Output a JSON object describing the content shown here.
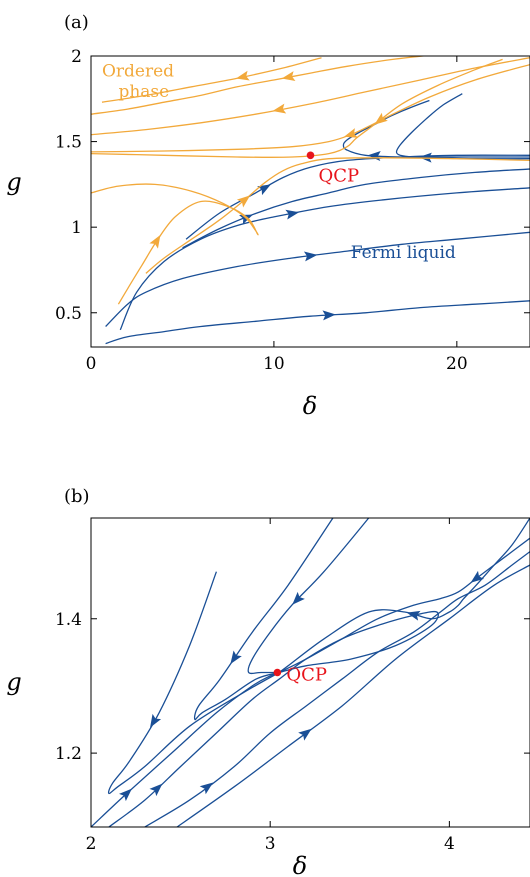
{
  "colors": {
    "flow_blue": "#1a4f96",
    "flow_orange": "#f2a93b",
    "qcp_red": "#e8141b"
  },
  "chart_data": [
    {
      "panel": "(a)",
      "type": "line",
      "subtype": "renormalization-group flow diagram",
      "xlabel": "δ",
      "ylabel": "g",
      "xlim": [
        0,
        24
      ],
      "ylim": [
        0.3,
        2.0
      ],
      "x_ticks": [
        {
          "v": 0,
          "label": "0"
        },
        {
          "v": 10,
          "label": "10"
        },
        {
          "v": 20,
          "label": "20"
        }
      ],
      "y_ticks": [
        {
          "v": 0.5,
          "label": "0.5"
        },
        {
          "v": 1,
          "label": "1"
        },
        {
          "v": 1.5,
          "label": "1.5"
        },
        {
          "v": 2,
          "label": "2"
        }
      ],
      "grid": false,
      "fixed_point": {
        "x": 12.0,
        "y": 1.42,
        "label": "QCP"
      },
      "region_labels": [
        {
          "text": "Ordered",
          "x": 0.6,
          "y": 1.88,
          "color": "orange"
        },
        {
          "text": "phase",
          "x": 1.5,
          "y": 1.76,
          "color": "orange"
        },
        {
          "text": "Fermi liquid",
          "x": 14.2,
          "y": 0.82,
          "color": "blue"
        }
      ],
      "series": [
        {
          "color": "blue",
          "x": [
            0.8,
            2,
            4,
            6,
            9,
            12,
            15,
            18,
            21,
            24
          ],
          "y": [
            0.32,
            0.36,
            0.39,
            0.42,
            0.45,
            0.48,
            0.5,
            0.53,
            0.55,
            0.57
          ],
          "arrows": [
            {
              "at": 13,
              "dir": 1
            }
          ]
        },
        {
          "color": "blue",
          "x": [
            0.8,
            2,
            3,
            5,
            8,
            11,
            14,
            17,
            20,
            24
          ],
          "y": [
            0.42,
            0.55,
            0.62,
            0.7,
            0.77,
            0.82,
            0.86,
            0.9,
            0.93,
            0.97
          ],
          "arrows": [
            {
              "at": 12,
              "dir": 1
            }
          ]
        },
        {
          "color": "blue",
          "x": [
            1.6,
            2.5,
            4,
            6,
            8,
            10,
            13,
            16,
            20,
            24
          ],
          "y": [
            0.4,
            0.62,
            0.8,
            0.93,
            1.01,
            1.06,
            1.12,
            1.16,
            1.2,
            1.23
          ],
          "arrows": [
            {
              "at": 11,
              "dir": 1
            }
          ]
        },
        {
          "color": "blue",
          "x": [
            5,
            7,
            9,
            11,
            13,
            15,
            18,
            21,
            24
          ],
          "y": [
            0.88,
            0.99,
            1.08,
            1.15,
            1.2,
            1.25,
            1.29,
            1.32,
            1.34
          ],
          "arrows": [
            {
              "at": 8.5,
              "dir": 1
            }
          ]
        },
        {
          "color": "blue",
          "x": [
            5.2,
            7,
            9,
            10.5,
            12,
            14,
            17,
            20,
            24
          ],
          "y": [
            0.93,
            1.08,
            1.2,
            1.29,
            1.35,
            1.39,
            1.41,
            1.42,
            1.42
          ],
          "arrows": [
            {
              "at": 9.5,
              "dir": 1
            }
          ]
        },
        {
          "color": "blue",
          "x": [
            24,
            20,
            17,
            15,
            14,
            13.8,
            14,
            14.6,
            15.5,
            16.4,
            17.5,
            18.5
          ],
          "y": [
            1.41,
            1.41,
            1.41,
            1.42,
            1.45,
            1.48,
            1.51,
            1.55,
            1.6,
            1.65,
            1.7,
            1.74
          ],
          "arrows": [
            {
              "at": 15.5,
              "dir": -1
            }
          ]
        },
        {
          "color": "blue",
          "x": [
            24,
            21,
            19,
            17.6,
            16.9,
            16.7,
            16.9,
            17.5,
            18.3,
            19.2,
            20.3
          ],
          "y": [
            1.4,
            1.4,
            1.405,
            1.41,
            1.42,
            1.44,
            1.48,
            1.55,
            1.63,
            1.71,
            1.78
          ],
          "arrows": [
            {
              "at": 18.3,
              "dir": -1
            }
          ]
        },
        {
          "color": "orange",
          "x": [
            1.5,
            2,
            2.8,
            3.6,
            4.6,
            6,
            7.5,
            8.6,
            9.1,
            9.0,
            8.4,
            7.2,
            5.5,
            3.5,
            1.5,
            0
          ],
          "y": [
            0.55,
            0.64,
            0.78,
            0.92,
            1.06,
            1.15,
            1.12,
            1.05,
            0.96,
            0.98,
            1.06,
            1.14,
            1.21,
            1.25,
            1.24,
            1.2
          ],
          "arrows": [
            {
              "at": 3.6,
              "dir": 1
            }
          ]
        },
        {
          "color": "orange",
          "x": [
            3,
            4,
            5.5,
            7,
            8.4,
            9.5,
            10.5,
            11.5,
            13,
            16,
            20,
            24
          ],
          "y": [
            0.73,
            0.82,
            0.93,
            1.04,
            1.16,
            1.26,
            1.33,
            1.37,
            1.4,
            1.405,
            1.4,
            1.39
          ],
          "arrows": [
            {
              "at": 8.4,
              "dir": 1
            }
          ]
        },
        {
          "color": "orange",
          "x": [
            0,
            4,
            8,
            11,
            13,
            14,
            14.5,
            15.5,
            17,
            19,
            21,
            22.5
          ],
          "y": [
            1.43,
            1.42,
            1.41,
            1.41,
            1.43,
            1.47,
            1.52,
            1.6,
            1.72,
            1.83,
            1.92,
            1.98
          ],
          "arrows": [
            {
              "at": 15.8,
              "dir": -1
            }
          ]
        },
        {
          "color": "orange",
          "x": [
            0,
            4,
            8,
            11,
            13,
            14.2,
            15.2,
            16.5,
            18.5,
            21,
            24
          ],
          "y": [
            1.44,
            1.445,
            1.455,
            1.47,
            1.5,
            1.54,
            1.59,
            1.66,
            1.76,
            1.86,
            1.95
          ],
          "arrows": [
            {
              "at": 14.2,
              "dir": -1
            }
          ]
        },
        {
          "color": "orange",
          "x": [
            0,
            3,
            6,
            9,
            12,
            15,
            18,
            21,
            24
          ],
          "y": [
            1.54,
            1.57,
            1.61,
            1.66,
            1.72,
            1.79,
            1.86,
            1.93,
            1.99
          ],
          "arrows": [
            {
              "at": 10.3,
              "dir": -1
            }
          ]
        },
        {
          "color": "orange",
          "x": [
            0,
            2,
            4,
            6,
            8,
            10,
            12,
            14,
            16.5,
            19
          ],
          "y": [
            1.66,
            1.69,
            1.73,
            1.77,
            1.82,
            1.86,
            1.9,
            1.94,
            1.98,
            2.01
          ],
          "arrows": [
            {
              "at": 10.8,
              "dir": -1
            }
          ]
        },
        {
          "color": "orange",
          "x": [
            0.6,
            3,
            5.5,
            8,
            10.5,
            12.6
          ],
          "y": [
            1.73,
            1.77,
            1.82,
            1.87,
            1.93,
            1.99
          ],
          "arrows": [
            {
              "at": 8.3,
              "dir": -1
            }
          ]
        }
      ]
    },
    {
      "panel": "(b)",
      "type": "line",
      "subtype": "renormalization-group flow diagram (zoom near QCP)",
      "xlabel": "δ",
      "ylabel": "g",
      "xlim": [
        2,
        4.45
      ],
      "ylim": [
        1.09,
        1.55
      ],
      "x_ticks": [
        {
          "v": 2,
          "label": "2"
        },
        {
          "v": 3,
          "label": "3"
        },
        {
          "v": 4,
          "label": "4"
        }
      ],
      "y_ticks": [
        {
          "v": 1.2,
          "label": "1.2"
        },
        {
          "v": 1.4,
          "label": "1.4"
        }
      ],
      "grid": false,
      "fixed_point": {
        "x": 3.04,
        "y": 1.32,
        "label": "QCP"
      },
      "series": [
        {
          "color": "blue",
          "x": [
            2.7,
            2.55,
            2.38,
            2.22,
            2.12,
            2.1,
            2.15,
            2.3,
            2.55,
            2.85,
            3.05
          ],
          "y": [
            1.47,
            1.36,
            1.26,
            1.19,
            1.155,
            1.14,
            1.15,
            1.18,
            1.24,
            1.29,
            1.32
          ],
          "arrows": [
            {
              "at": 2.35,
              "dir": -1
            }
          ]
        },
        {
          "color": "blue",
          "x": [
            3.35,
            3.1,
            2.9,
            2.72,
            2.6,
            2.58,
            2.62,
            2.75,
            2.92,
            3.05
          ],
          "y": [
            1.55,
            1.45,
            1.38,
            1.31,
            1.27,
            1.25,
            1.26,
            1.28,
            1.31,
            1.32
          ],
          "arrows": [
            {
              "at": 2.8,
              "dir": -1
            }
          ]
        },
        {
          "color": "blue",
          "x": [
            3.55,
            3.3,
            3.12,
            3.0,
            2.9,
            2.88,
            2.95,
            3.05
          ],
          "y": [
            1.55,
            1.47,
            1.42,
            1.38,
            1.34,
            1.32,
            1.32,
            1.32
          ],
          "arrows": [
            {
              "at": 3.15,
              "dir": -1
            }
          ]
        },
        {
          "color": "blue",
          "x": [
            4.45,
            4.3,
            4.15,
            4.05,
            3.95,
            3.8,
            3.6,
            3.4,
            3.2,
            3.05
          ],
          "y": [
            1.52,
            1.49,
            1.46,
            1.44,
            1.43,
            1.42,
            1.4,
            1.37,
            1.34,
            1.32
          ],
          "arrows": [
            {
              "at": 4.15,
              "dir": -1
            }
          ]
        },
        {
          "color": "blue",
          "x": [
            4.45,
            4.35,
            4.25,
            4.15,
            4.08,
            4.05,
            4.0,
            3.9,
            3.75,
            3.55,
            3.3,
            3.1,
            3.05
          ],
          "y": [
            1.55,
            1.51,
            1.48,
            1.45,
            1.43,
            1.42,
            1.41,
            1.4,
            1.41,
            1.41,
            1.37,
            1.33,
            1.32
          ],
          "arrows": [
            {
              "at": 3.8,
              "dir": -1
            }
          ]
        },
        {
          "color": "blue",
          "x": [
            2.0,
            2.2,
            2.45,
            2.7,
            2.9,
            3.0,
            3.05
          ],
          "y": [
            1.09,
            1.14,
            1.2,
            1.26,
            1.3,
            1.315,
            1.32
          ],
          "arrows": [
            {
              "at": 2.2,
              "dir": 1
            }
          ]
        },
        {
          "color": "blue",
          "x": [
            2.1,
            2.3,
            2.5,
            2.7,
            2.9,
            3.05,
            3.2,
            3.4,
            3.6,
            3.8,
            3.93,
            3.9,
            3.7,
            3.45,
            3.2,
            3.05
          ],
          "y": [
            1.09,
            1.13,
            1.18,
            1.23,
            1.28,
            1.31,
            1.34,
            1.37,
            1.39,
            1.405,
            1.41,
            1.39,
            1.36,
            1.34,
            1.33,
            1.32
          ],
          "arrows": [
            {
              "at": 2.37,
              "dir": 1
            }
          ]
        },
        {
          "color": "blue",
          "x": [
            2.3,
            2.55,
            2.8,
            3.0,
            3.2,
            3.4,
            3.6,
            3.8,
            3.95,
            4.05,
            4.2,
            4.35,
            4.45
          ],
          "y": [
            1.09,
            1.13,
            1.18,
            1.23,
            1.27,
            1.31,
            1.35,
            1.38,
            1.41,
            1.43,
            1.45,
            1.48,
            1.5
          ],
          "arrows": [
            {
              "at": 2.65,
              "dir": 1
            }
          ]
        },
        {
          "color": "blue",
          "x": [
            2.48,
            2.8,
            3.1,
            3.4,
            3.7,
            4.0,
            4.25,
            4.45
          ],
          "y": [
            1.09,
            1.15,
            1.21,
            1.27,
            1.34,
            1.4,
            1.45,
            1.48
          ],
          "arrows": [
            {
              "at": 3.2,
              "dir": 1
            }
          ]
        }
      ]
    }
  ]
}
